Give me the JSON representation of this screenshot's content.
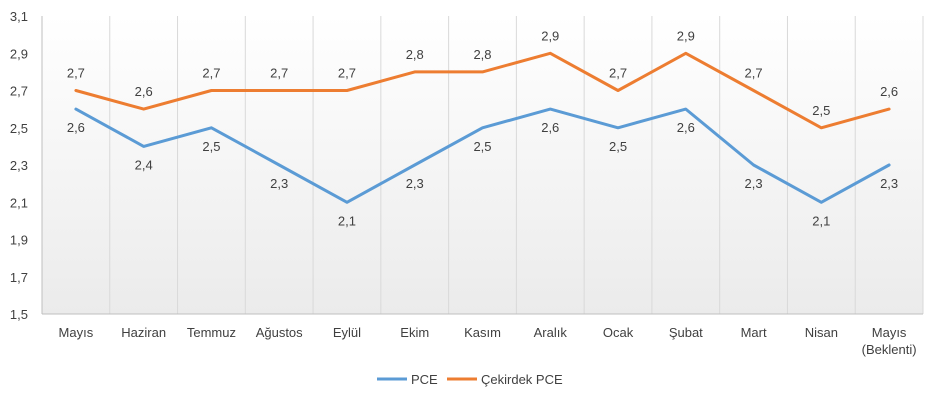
{
  "chart_data": {
    "type": "line",
    "categories": [
      "Mayıs",
      "Haziran",
      "Temmuz",
      "Ağustos",
      "Eylül",
      "Ekim",
      "Kasım",
      "Aralık",
      "Ocak",
      "Şubat",
      "Mart",
      "Nisan",
      "Mayıs\n(Beklenti)"
    ],
    "series": [
      {
        "name": "PCE",
        "color": "#5b9bd5",
        "values": [
          2.6,
          2.4,
          2.5,
          2.3,
          2.1,
          2.3,
          2.5,
          2.6,
          2.5,
          2.6,
          2.3,
          2.1,
          2.3
        ],
        "labels": [
          "2,6",
          "2,4",
          "2,5",
          "2,3",
          "2,1",
          "2,3",
          "2,5",
          "2,6",
          "2,5",
          "2,6",
          "2,3",
          "2,1",
          "2,3"
        ]
      },
      {
        "name": "Çekirdek PCE",
        "color": "#ed7d31",
        "values": [
          2.7,
          2.6,
          2.7,
          2.7,
          2.7,
          2.8,
          2.8,
          2.9,
          2.7,
          2.9,
          2.7,
          2.5,
          2.6
        ],
        "labels": [
          "2,7",
          "2,6",
          "2,7",
          "2,7",
          "2,7",
          "2,8",
          "2,8",
          "2,9",
          "2,7",
          "2,9",
          "2,7",
          "2,5",
          "2,6"
        ]
      }
    ],
    "ylim": [
      1.5,
      3.1
    ],
    "yticks": [
      1.5,
      1.7,
      1.9,
      2.1,
      2.3,
      2.5,
      2.7,
      2.9,
      3.1
    ],
    "ytick_labels": [
      "1,5",
      "1,7",
      "1,9",
      "2,1",
      "2,3",
      "2,5",
      "2,7",
      "2,9",
      "3,1"
    ],
    "grid": "vertical",
    "legend": "bottom-center",
    "title": "",
    "xlabel": "",
    "ylabel": "",
    "plot_background": "gradient white to light gray"
  }
}
